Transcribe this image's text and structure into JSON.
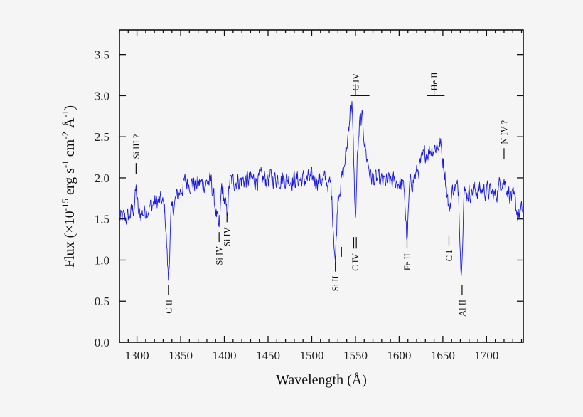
{
  "chart_data": {
    "type": "line",
    "title": "",
    "xlabel": "Wavelength (Å)",
    "ylabel_parts": {
      "prefix": "Flux (×10",
      "exp1": "-15",
      "mid1": " erg s",
      "exp2": "-1",
      "mid2": " cm",
      "exp3": "-2",
      "mid3": " Å",
      "exp4": "-1",
      "suffix": ")"
    },
    "ylabel": "Flux (×10^-15 erg s^-1 cm^-2 Å^-1)",
    "xlim": [
      1280,
      1742
    ],
    "ylim": [
      0.0,
      3.8
    ],
    "x_ticks": [
      1300,
      1350,
      1400,
      1450,
      1500,
      1550,
      1600,
      1650,
      1700
    ],
    "x_tick_labels": [
      "1300",
      "1350",
      "1400",
      "1450",
      "1500",
      "1550",
      "1600",
      "1650",
      "1700"
    ],
    "x_minor_step": 10,
    "y_ticks": [
      0.0,
      0.5,
      1.0,
      1.5,
      2.0,
      2.5,
      3.0,
      3.5
    ],
    "y_tick_labels": [
      "0.0",
      "0.5",
      "1.0",
      "1.5",
      "2.0",
      "2.5",
      "3.0",
      "3.5"
    ],
    "grid": false,
    "legend": null,
    "line_color": "#1a1adc",
    "series": [
      {
        "name": "spectrum",
        "description": "UV spectrum; continuum ~1.5 rising to ~2.0, strong C IV emission peaking ~2.95 near 1545-1557 Å, He II emission ~2.5 near 1640 Å, absorption dips at C II, Si IV, Si II, C IV, Fe II, Al II",
        "control_points": [
          [
            1280,
            1.5
          ],
          [
            1290,
            1.52
          ],
          [
            1296,
            1.62
          ],
          [
            1299,
            1.85
          ],
          [
            1302,
            1.55
          ],
          [
            1310,
            1.6
          ],
          [
            1320,
            1.7
          ],
          [
            1328,
            1.72
          ],
          [
            1332,
            1.6
          ],
          [
            1336,
            0.75
          ],
          [
            1339,
            1.55
          ],
          [
            1345,
            1.75
          ],
          [
            1355,
            1.95
          ],
          [
            1370,
            1.92
          ],
          [
            1385,
            1.95
          ],
          [
            1394,
            1.35
          ],
          [
            1397,
            1.9
          ],
          [
            1403,
            1.55
          ],
          [
            1406,
            1.95
          ],
          [
            1420,
            1.97
          ],
          [
            1440,
            1.98
          ],
          [
            1460,
            2.0
          ],
          [
            1480,
            1.98
          ],
          [
            1500,
            1.98
          ],
          [
            1515,
            1.97
          ],
          [
            1522,
            1.9
          ],
          [
            1527,
            0.98
          ],
          [
            1530,
            1.8
          ],
          [
            1536,
            2.05
          ],
          [
            1540,
            2.35
          ],
          [
            1544,
            2.85
          ],
          [
            1546,
            2.88
          ],
          [
            1548,
            2.2
          ],
          [
            1550,
            1.45
          ],
          [
            1552,
            2.2
          ],
          [
            1555,
            2.68
          ],
          [
            1558,
            2.7
          ],
          [
            1562,
            2.3
          ],
          [
            1568,
            2.0
          ],
          [
            1580,
            1.95
          ],
          [
            1600,
            1.95
          ],
          [
            1606,
            1.85
          ],
          [
            1609,
            1.2
          ],
          [
            1612,
            1.9
          ],
          [
            1620,
            2.05
          ],
          [
            1630,
            2.3
          ],
          [
            1636,
            2.35
          ],
          [
            1642,
            2.38
          ],
          [
            1647,
            2.42
          ],
          [
            1652,
            2.1
          ],
          [
            1657,
            1.6
          ],
          [
            1662,
            1.9
          ],
          [
            1668,
            1.85
          ],
          [
            1671,
            0.8
          ],
          [
            1674,
            1.8
          ],
          [
            1685,
            1.85
          ],
          [
            1700,
            1.85
          ],
          [
            1710,
            1.78
          ],
          [
            1718,
            2.0
          ],
          [
            1725,
            1.85
          ],
          [
            1732,
            1.7
          ],
          [
            1736,
            1.55
          ],
          [
            1742,
            1.6
          ]
        ],
        "noise_amplitude": 0.13,
        "sample_step": 0.5
      }
    ],
    "annotations": [
      {
        "label": "Si III ?",
        "wavelength": 1299,
        "tick_y": [
          2.05,
          2.18
        ],
        "text_y": 2.23,
        "position": "above"
      },
      {
        "label": "C II",
        "wavelength": 1336,
        "tick_y": [
          0.58,
          0.7
        ],
        "text_y": 0.52,
        "position": "below"
      },
      {
        "label": "Si IV",
        "wavelength": 1394,
        "tick_y": [
          1.22,
          1.34
        ],
        "text_y": 1.17,
        "position": "below"
      },
      {
        "label": "Si IV",
        "wavelength": 1403,
        "tick_y": [
          1.46,
          1.58
        ],
        "text_y": 1.4,
        "position": "below"
      },
      {
        "label": "Si II",
        "wavelength": 1527,
        "tick_y": [
          0.86,
          0.98
        ],
        "text_y": 0.81,
        "position": "below"
      },
      {
        "label": "",
        "wavelength": 1534,
        "tick_y": [
          1.04,
          1.16
        ],
        "text_y": 0,
        "position": "none"
      },
      {
        "label": "C IV",
        "wavelength": 1549.5,
        "double_tick_x": [
          1548,
          1551
        ],
        "tick_y": [
          1.14,
          1.28
        ],
        "text_y": 1.08,
        "position": "below"
      },
      {
        "label": "C IV",
        "wavelength": 1550,
        "bar_x": [
          1544,
          1566
        ],
        "bar_y": 3.0,
        "text_y": 3.06,
        "position": "above"
      },
      {
        "label": "Fe II",
        "wavelength": 1609,
        "tick_y": [
          1.14,
          1.28
        ],
        "text_y": 1.08,
        "position": "below"
      },
      {
        "label": "He II",
        "wavelength": 1640,
        "bar_x": [
          1632,
          1652
        ],
        "bar_y": 3.0,
        "text_y": 3.06,
        "position": "above"
      },
      {
        "label": "C I",
        "wavelength": 1657,
        "tick_y": [
          1.18,
          1.3
        ],
        "text_y": 1.12,
        "position": "below"
      },
      {
        "label": "Al II",
        "wavelength": 1672,
        "tick_y": [
          0.58,
          0.7
        ],
        "text_y": 0.52,
        "position": "below"
      },
      {
        "label": "N IV ?",
        "wavelength": 1720,
        "tick_y": [
          2.23,
          2.36
        ],
        "text_y": 2.41,
        "position": "above"
      }
    ]
  }
}
